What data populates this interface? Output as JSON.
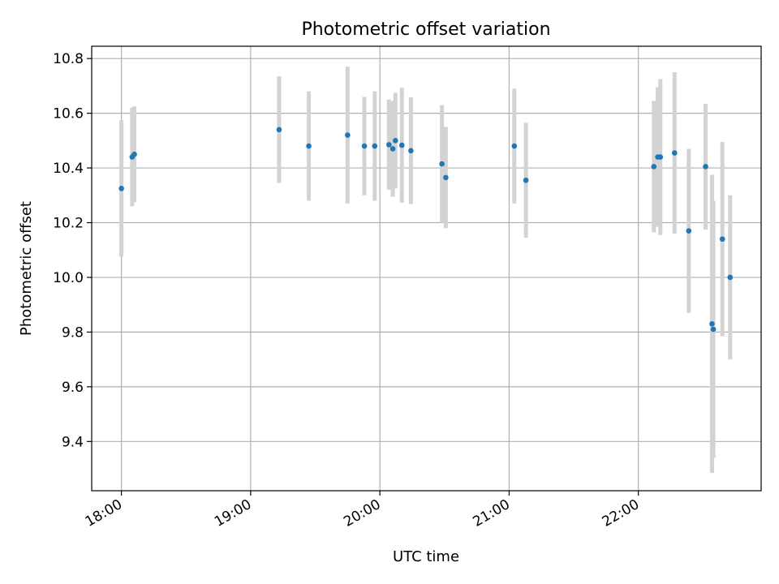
{
  "chart_data": {
    "type": "scatter",
    "title": "Photometric offset variation",
    "xlabel": "UTC time",
    "ylabel": "Photometric offset",
    "xlim": [
      17.77,
      22.95
    ],
    "ylim": [
      9.22,
      10.845
    ],
    "grid": true,
    "x_ticks": [
      {
        "value": 18,
        "label": "18:00"
      },
      {
        "value": 19,
        "label": "19:00"
      },
      {
        "value": 20,
        "label": "20:00"
      },
      {
        "value": 21,
        "label": "21:00"
      },
      {
        "value": 22,
        "label": "22:00"
      }
    ],
    "y_ticks": [
      {
        "value": 9.4,
        "label": "9.4"
      },
      {
        "value": 9.6,
        "label": "9.6"
      },
      {
        "value": 9.8,
        "label": "9.8"
      },
      {
        "value": 10.0,
        "label": "10.0"
      },
      {
        "value": 10.2,
        "label": "10.2"
      },
      {
        "value": 10.4,
        "label": "10.4"
      },
      {
        "value": 10.6,
        "label": "10.6"
      },
      {
        "value": 10.8,
        "label": "10.8"
      }
    ],
    "colors": {
      "marker": "#1f77b4",
      "errorbar": "#d3d3d3",
      "grid": "#b0b0b0"
    },
    "points": [
      {
        "x": 18.0,
        "y": 10.325,
        "err": 0.25
      },
      {
        "x": 18.083,
        "y": 10.44,
        "err": 0.18
      },
      {
        "x": 18.1,
        "y": 10.45,
        "err": 0.175
      },
      {
        "x": 19.22,
        "y": 10.54,
        "err": 0.195
      },
      {
        "x": 19.45,
        "y": 10.48,
        "err": 0.2
      },
      {
        "x": 19.75,
        "y": 10.52,
        "err": 0.25
      },
      {
        "x": 19.88,
        "y": 10.48,
        "err": 0.18
      },
      {
        "x": 19.96,
        "y": 10.48,
        "err": 0.2
      },
      {
        "x": 20.07,
        "y": 10.485,
        "err": 0.165
      },
      {
        "x": 20.1,
        "y": 10.47,
        "err": 0.175
      },
      {
        "x": 20.12,
        "y": 10.5,
        "err": 0.175
      },
      {
        "x": 20.17,
        "y": 10.483,
        "err": 0.21
      },
      {
        "x": 20.24,
        "y": 10.463,
        "err": 0.195
      },
      {
        "x": 20.48,
        "y": 10.415,
        "err": 0.215
      },
      {
        "x": 20.51,
        "y": 10.365,
        "err": 0.185
      },
      {
        "x": 21.04,
        "y": 10.48,
        "err": 0.21
      },
      {
        "x": 21.13,
        "y": 10.355,
        "err": 0.21
      },
      {
        "x": 22.12,
        "y": 10.405,
        "err": 0.24
      },
      {
        "x": 22.15,
        "y": 10.44,
        "err": 0.255
      },
      {
        "x": 22.17,
        "y": 10.44,
        "err": 0.285
      },
      {
        "x": 22.28,
        "y": 10.455,
        "err": 0.295
      },
      {
        "x": 22.39,
        "y": 10.17,
        "err": 0.3
      },
      {
        "x": 22.52,
        "y": 10.405,
        "err": 0.23
      },
      {
        "x": 22.57,
        "y": 9.83,
        "err": 0.545
      },
      {
        "x": 22.58,
        "y": 9.81,
        "err": 0.47
      },
      {
        "x": 22.65,
        "y": 10.14,
        "err": 0.355
      },
      {
        "x": 22.71,
        "y": 10.0,
        "err": 0.3
      }
    ]
  }
}
